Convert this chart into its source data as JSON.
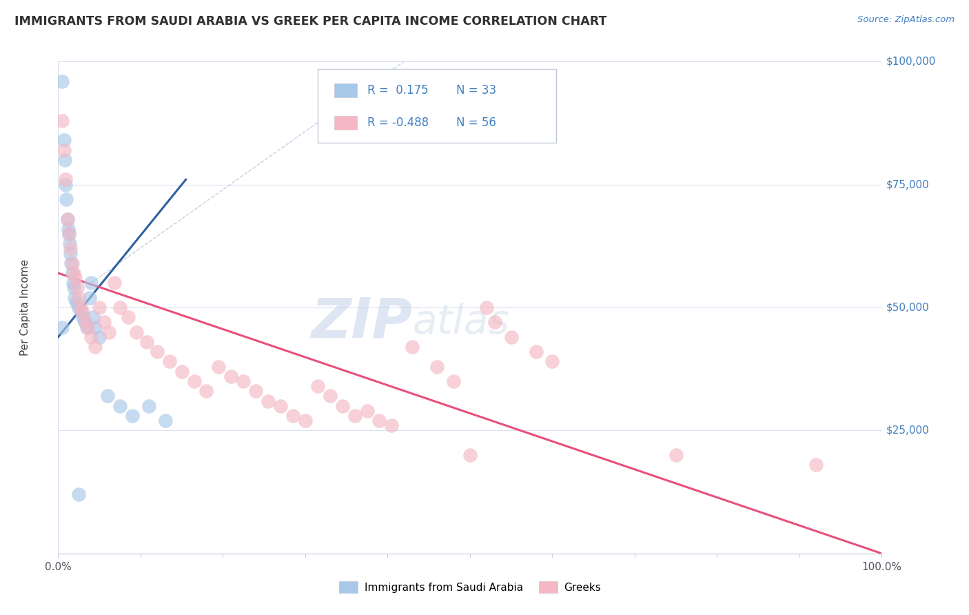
{
  "title": "IMMIGRANTS FROM SAUDI ARABIA VS GREEK PER CAPITA INCOME CORRELATION CHART",
  "source_text": "Source: ZipAtlas.com",
  "ylabel": "Per Capita Income",
  "watermark_zip": "ZIP",
  "watermark_atlas": "atlas",
  "x_min": 0.0,
  "x_max": 1.0,
  "y_min": 0,
  "y_max": 100000,
  "y_ticks": [
    0,
    25000,
    50000,
    75000,
    100000
  ],
  "y_tick_labels": [
    "",
    "$25,000",
    "$50,000",
    "$75,000",
    "$100,000"
  ],
  "x_tick_labels": [
    "0.0%",
    "100.0%"
  ],
  "legend_r1": "R =  0.175",
  "legend_n1": "N = 33",
  "legend_r2": "R = -0.488",
  "legend_n2": "N = 56",
  "color_blue": "#a8c8e8",
  "color_pink": "#f4b8c4",
  "color_blue_line": "#3060a0",
  "color_pink_line": "#e8507a",
  "title_color": "#303030",
  "source_color": "#4080c0",
  "ytick_color": "#4080c0",
  "grid_color": "#d8dff0",
  "blue_scatter_x": [
    0.005,
    0.007,
    0.008,
    0.009,
    0.01,
    0.011,
    0.012,
    0.013,
    0.014,
    0.015,
    0.016,
    0.017,
    0.018,
    0.019,
    0.02,
    0.022,
    0.025,
    0.028,
    0.03,
    0.032,
    0.035,
    0.038,
    0.04,
    0.042,
    0.045,
    0.05,
    0.06,
    0.075,
    0.09,
    0.11,
    0.13,
    0.005,
    0.025
  ],
  "blue_scatter_y": [
    96000,
    84000,
    80000,
    75000,
    72000,
    68000,
    66000,
    65000,
    63000,
    61000,
    59000,
    57000,
    55000,
    54000,
    52000,
    51000,
    50000,
    49000,
    48000,
    47000,
    46000,
    52000,
    55000,
    48000,
    46000,
    44000,
    32000,
    30000,
    28000,
    30000,
    27000,
    46000,
    12000
  ],
  "pink_scatter_x": [
    0.005,
    0.007,
    0.009,
    0.011,
    0.013,
    0.015,
    0.017,
    0.019,
    0.021,
    0.023,
    0.025,
    0.027,
    0.03,
    0.033,
    0.036,
    0.04,
    0.045,
    0.05,
    0.056,
    0.062,
    0.068,
    0.075,
    0.085,
    0.095,
    0.108,
    0.12,
    0.135,
    0.15,
    0.165,
    0.18,
    0.195,
    0.21,
    0.225,
    0.24,
    0.255,
    0.27,
    0.285,
    0.3,
    0.315,
    0.33,
    0.345,
    0.36,
    0.375,
    0.39,
    0.405,
    0.43,
    0.46,
    0.48,
    0.5,
    0.52,
    0.53,
    0.55,
    0.58,
    0.6,
    0.75,
    0.92
  ],
  "pink_scatter_y": [
    88000,
    82000,
    76000,
    68000,
    65000,
    62000,
    59000,
    57000,
    56000,
    54000,
    52000,
    50000,
    49000,
    47000,
    46000,
    44000,
    42000,
    50000,
    47000,
    45000,
    55000,
    50000,
    48000,
    45000,
    43000,
    41000,
    39000,
    37000,
    35000,
    33000,
    38000,
    36000,
    35000,
    33000,
    31000,
    30000,
    28000,
    27000,
    34000,
    32000,
    30000,
    28000,
    29000,
    27000,
    26000,
    42000,
    38000,
    35000,
    20000,
    50000,
    47000,
    44000,
    41000,
    39000,
    20000,
    18000
  ],
  "blue_line_x": [
    0.0,
    0.155
  ],
  "blue_line_y": [
    44000,
    76000
  ],
  "pink_line_x": [
    0.0,
    1.0
  ],
  "pink_line_y": [
    57000,
    0
  ],
  "diag_line_x": [
    0.04,
    0.42
  ],
  "diag_line_y": [
    55000,
    100000
  ]
}
